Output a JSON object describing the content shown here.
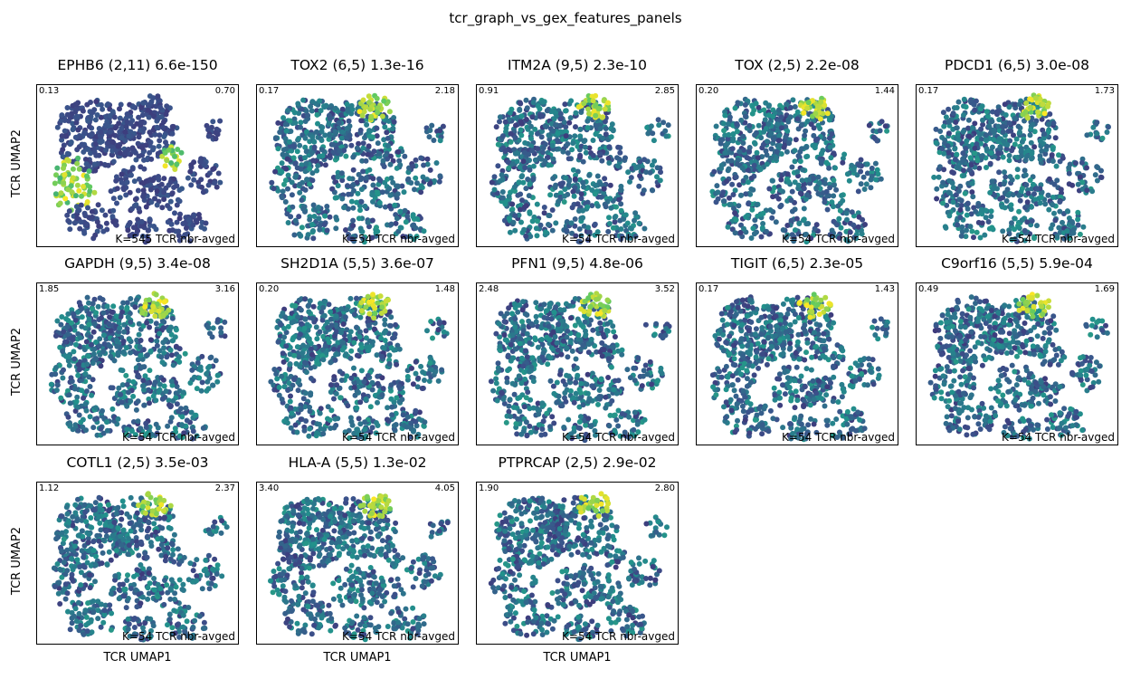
{
  "figure": {
    "title": "tcr_graph_vs_gex_features_panels",
    "xlabel": "TCR UMAP1",
    "ylabel": "TCR UMAP2"
  },
  "colors": {
    "low": "#3b2a6b",
    "mid": "#2d5f8b",
    "teal": "#1f9a8a",
    "green": "#6fcf57",
    "high": "#d7e21f"
  },
  "chart_data": [
    {
      "type": "scatter",
      "title": "EPHB6 (2,11) 6.6e-150",
      "vmin": "0.13",
      "vmax": "0.70",
      "note": "K=545 TCR nbr-avged",
      "row": 0,
      "col": 0
    },
    {
      "type": "scatter",
      "title": "TOX2 (6,5) 1.3e-16",
      "vmin": "0.17",
      "vmax": "2.18",
      "note": "K=54 TCR nbr-avged",
      "row": 0,
      "col": 1
    },
    {
      "type": "scatter",
      "title": "ITM2A (9,5) 2.3e-10",
      "vmin": "0.91",
      "vmax": "2.85",
      "note": "K=54 TCR nbr-avged",
      "row": 0,
      "col": 2
    },
    {
      "type": "scatter",
      "title": "TOX (2,5) 2.2e-08",
      "vmin": "0.20",
      "vmax": "1.44",
      "note": "K=54 TCR nbr-avged",
      "row": 0,
      "col": 3
    },
    {
      "type": "scatter",
      "title": "PDCD1 (6,5) 3.0e-08",
      "vmin": "0.17",
      "vmax": "1.73",
      "note": "K=54 TCR nbr-avged",
      "row": 0,
      "col": 4
    },
    {
      "type": "scatter",
      "title": "GAPDH (9,5) 3.4e-08",
      "vmin": "1.85",
      "vmax": "3.16",
      "note": "K=54 TCR nbr-avged",
      "row": 1,
      "col": 0
    },
    {
      "type": "scatter",
      "title": "SH2D1A (5,5) 3.6e-07",
      "vmin": "0.20",
      "vmax": "1.48",
      "note": "K=54 TCR nbr-avged",
      "row": 1,
      "col": 1
    },
    {
      "type": "scatter",
      "title": "PFN1 (9,5) 4.8e-06",
      "vmin": "2.48",
      "vmax": "3.52",
      "note": "K=54 TCR nbr-avged",
      "row": 1,
      "col": 2
    },
    {
      "type": "scatter",
      "title": "TIGIT (6,5) 2.3e-05",
      "vmin": "0.17",
      "vmax": "1.43",
      "note": "K=54 TCR nbr-avged",
      "row": 1,
      "col": 3
    },
    {
      "type": "scatter",
      "title": "C9orf16 (5,5) 5.9e-04",
      "vmin": "0.49",
      "vmax": "1.69",
      "note": "K=54 TCR nbr-avged",
      "row": 1,
      "col": 4
    },
    {
      "type": "scatter",
      "title": "COTL1 (2,5) 3.5e-03",
      "vmin": "1.12",
      "vmax": "2.37",
      "note": "K=54 TCR nbr-avged",
      "row": 2,
      "col": 0
    },
    {
      "type": "scatter",
      "title": "HLA-A (5,5) 1.3e-02",
      "vmin": "3.40",
      "vmax": "4.05",
      "note": "K=54 TCR nbr-avged",
      "row": 2,
      "col": 1
    },
    {
      "type": "scatter",
      "title": "PTPRCAP (2,5) 2.9e-02",
      "vmin": "1.90",
      "vmax": "2.80",
      "note": "K=54 TCR nbr-avged",
      "row": 2,
      "col": 2
    }
  ]
}
